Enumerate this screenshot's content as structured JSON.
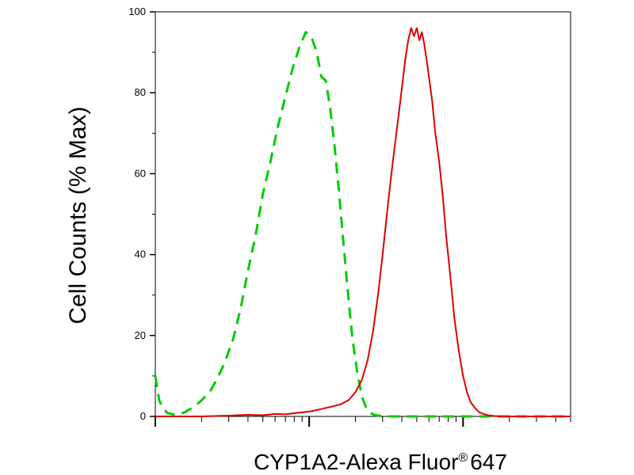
{
  "chart_data": {
    "type": "line",
    "xlabel": "CYP1A2-Alexa Fluor",
    "xlabel_superscript": "®",
    "xlabel_suffix": "647",
    "ylabel": "Cell Counts (% Max)",
    "ylim": [
      0,
      100
    ],
    "yticks": [
      "0",
      "20",
      "40",
      "60",
      "80",
      "100"
    ],
    "xscale": "log",
    "xlim": [
      1,
      500
    ],
    "grid": false,
    "series": [
      {
        "color": "#00cc00",
        "dash": "dashed",
        "x": [
          1.0,
          1.06,
          1.12,
          1.2,
          1.35,
          1.55,
          1.8,
          2.0,
          2.25,
          2.5,
          2.8,
          3.2,
          3.6,
          4.0,
          4.5,
          5.0,
          5.6,
          6.2,
          7.0,
          7.8,
          8.6,
          9.5,
          10.3,
          11.2,
          12.0,
          12.8,
          13.6,
          14.5,
          15.5,
          16.5,
          17.7,
          19.0,
          20.5,
          22.0,
          23.5,
          25.0,
          27.0,
          29.5,
          33.0,
          40.0,
          55.0,
          80.0,
          120.0,
          200.0,
          320.0,
          500.0
        ],
        "y": [
          10,
          4,
          2,
          0.8,
          0.4,
          1,
          2.5,
          4,
          6,
          9,
          13,
          19,
          27,
          36,
          45,
          55,
          63,
          71,
          79,
          86,
          91,
          95,
          94,
          90,
          84,
          83,
          77,
          68,
          57,
          45,
          32,
          20,
          11,
          5,
          2,
          0.8,
          0.3,
          0.1,
          0,
          0,
          0,
          0,
          0,
          0,
          0,
          0
        ]
      },
      {
        "color": "#dd0000",
        "dash": "solid",
        "x": [
          1.0,
          2.0,
          3.0,
          4.0,
          5.0,
          6.0,
          7.0,
          8.0,
          9.0,
          10.0,
          11.0,
          12.5,
          14.0,
          16.0,
          18.0,
          20.0,
          22.0,
          24.0,
          26.0,
          28.0,
          30.0,
          32.0,
          34.0,
          36.0,
          38.0,
          40.0,
          42.0,
          44.0,
          46.0,
          48.0,
          50.0,
          52.0,
          54.0,
          56.0,
          58.0,
          60.0,
          63.0,
          66.0,
          70.0,
          74.0,
          78.0,
          83.0,
          88.0,
          94.0,
          100.0,
          106.0,
          112.0,
          120.0,
          128.0,
          136.0,
          145.0,
          160.0,
          180.0,
          220.0,
          300.0,
          500.0
        ],
        "y": [
          0,
          0,
          0.2,
          0.4,
          0.3,
          0.6,
          0.5,
          0.8,
          1.0,
          1.2,
          1.5,
          2.0,
          2.4,
          3.0,
          4.0,
          6.0,
          9.0,
          14.0,
          21.0,
          30.0,
          40.0,
          50.0,
          59.0,
          67.0,
          74.0,
          81.0,
          88.0,
          93.0,
          96.0,
          94.0,
          96.0,
          93.0,
          95.0,
          92.0,
          88.0,
          84.0,
          78.0,
          70.0,
          63.0,
          54.0,
          44.0,
          34.0,
          24.0,
          16.0,
          10.0,
          6.0,
          3.5,
          2.0,
          1.0,
          0.6,
          0.3,
          0.1,
          0,
          0,
          0,
          0
        ]
      }
    ]
  }
}
